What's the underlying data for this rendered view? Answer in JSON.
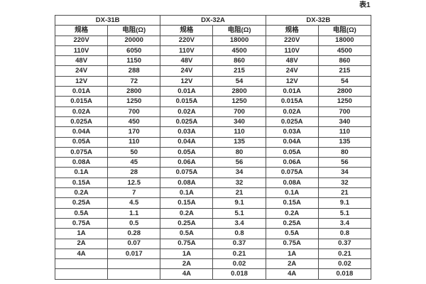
{
  "page": {
    "caption": "表1"
  },
  "table": {
    "groups": [
      {
        "name": "DX-31B",
        "spec_header": "规格",
        "resistance_header": "电阻(Ω)"
      },
      {
        "name": "DX-32A",
        "spec_header": "规格",
        "resistance_header": "电阻(Ω)"
      },
      {
        "name": "DX-32B",
        "spec_header": "规格",
        "resistance_header": "电阻(Ω)"
      }
    ],
    "rows": [
      [
        "220V",
        "20000",
        "220V",
        "18000",
        "220V",
        "18000"
      ],
      [
        "110V",
        "6050",
        "110V",
        "4500",
        "110V",
        "4500"
      ],
      [
        "48V",
        "1150",
        "48V",
        "860",
        "48V",
        "860"
      ],
      [
        "24V",
        "288",
        "24V",
        "215",
        "24V",
        "215"
      ],
      [
        "12V",
        "72",
        "12V",
        "54",
        "12V",
        "54"
      ],
      [
        "0.01A",
        "2800",
        "0.01A",
        "2800",
        "0.01A",
        "2800"
      ],
      [
        "0.015A",
        "1250",
        "0.015A",
        "1250",
        "0.015A",
        "1250"
      ],
      [
        "0.02A",
        "700",
        "0.02A",
        "700",
        "0.02A",
        "700"
      ],
      [
        "0.025A",
        "450",
        "0.025A",
        "340",
        "0.025A",
        "340"
      ],
      [
        "0.04A",
        "170",
        "0.03A",
        "110",
        "0.03A",
        "110"
      ],
      [
        "0.05A",
        "110",
        "0.04A",
        "135",
        "0.04A",
        "135"
      ],
      [
        "0.075A",
        "50",
        "0.05A",
        "80",
        "0.05A",
        "80"
      ],
      [
        "0.08A",
        "45",
        "0.06A",
        "56",
        "0.06A",
        "56"
      ],
      [
        "0.1A",
        "28",
        "0.075A",
        "34",
        "0.075A",
        "34"
      ],
      [
        "0.15A",
        "12.5",
        "0.08A",
        "32",
        "0.08A",
        "32"
      ],
      [
        "0.2A",
        "7",
        "0.1A",
        "21",
        "0.1A",
        "21"
      ],
      [
        "0.25A",
        "4.5",
        "0.15A",
        "9.1",
        "0.15A",
        "9.1"
      ],
      [
        "0.5A",
        "1.1",
        "0.2A",
        "5.1",
        "0.2A",
        "5.1"
      ],
      [
        "0.75A",
        "0.5",
        "0.25A",
        "3.4",
        "0.25A",
        "3.4"
      ],
      [
        "1A",
        "0.28",
        "0.5A",
        "0.8",
        "0.5A",
        "0.8"
      ],
      [
        "2A",
        "0.07",
        "0.75A",
        "0.37",
        "0.75A",
        "0.37"
      ],
      [
        "4A",
        "0.017",
        "1A",
        "0.21",
        "1A",
        "0.21"
      ],
      [
        "",
        "",
        "2A",
        "0.02",
        "2A",
        "0.02"
      ],
      [
        "",
        "",
        "4A",
        "0.018",
        "4A",
        "0.018"
      ]
    ],
    "colors": {
      "border": "#4d4d4d",
      "text": "#262626",
      "background": "#ffffff"
    }
  }
}
